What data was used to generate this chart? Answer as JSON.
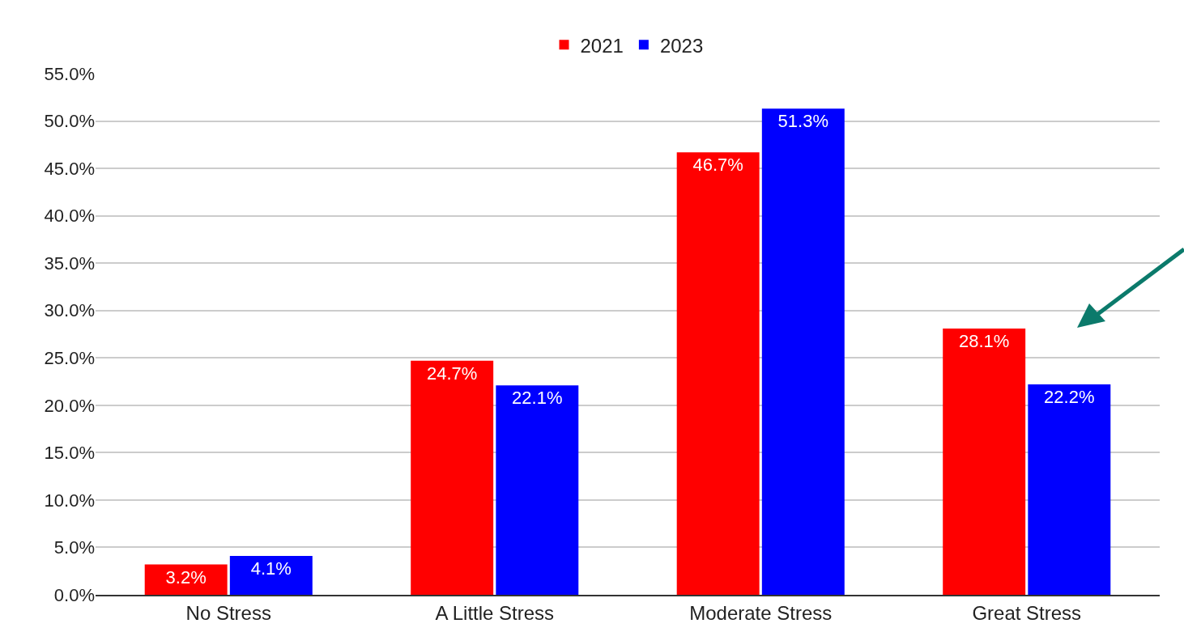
{
  "chart_data": {
    "type": "bar",
    "categories": [
      "No Stress",
      "A Little Stress",
      "Moderate Stress",
      "Great Stress"
    ],
    "series": [
      {
        "name": "2021",
        "color": "#ff0000",
        "values": [
          3.2,
          24.7,
          46.7,
          28.1
        ],
        "value_labels": [
          "3.2%",
          "24.7%",
          "46.7%",
          "28.1%"
        ]
      },
      {
        "name": "2023",
        "color": "#0000ff",
        "values": [
          4.1,
          22.1,
          51.3,
          22.2
        ],
        "value_labels": [
          "4.1%",
          "22.1%",
          "51.3%",
          "22.2%"
        ]
      }
    ],
    "ylim": [
      0,
      55
    ],
    "yticks": [
      {
        "value": 0,
        "label": "0.0%"
      },
      {
        "value": 5,
        "label": "5.0%"
      },
      {
        "value": 10,
        "label": "10.0%"
      },
      {
        "value": 15,
        "label": "15.0%"
      },
      {
        "value": 20,
        "label": "20.0%"
      },
      {
        "value": 25,
        "label": "25.0%"
      },
      {
        "value": 30,
        "label": "30.0%"
      },
      {
        "value": 35,
        "label": "35.0%"
      },
      {
        "value": 40,
        "label": "40.0%"
      },
      {
        "value": 45,
        "label": "45.0%"
      },
      {
        "value": 50,
        "label": "50.0%"
      },
      {
        "value": 55,
        "label": "55.0%"
      }
    ],
    "grid": "y",
    "legend": "top"
  }
}
